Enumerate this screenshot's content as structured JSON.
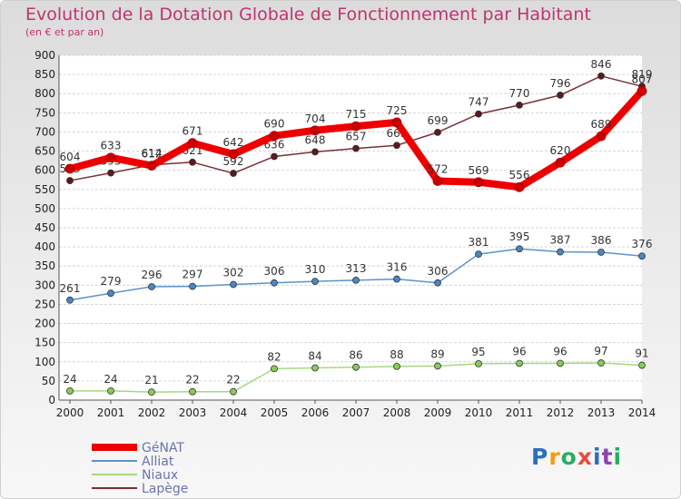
{
  "header": {
    "title": "Evolution de la Dotation Globale de Fonctionnement par Habitant",
    "subtitle": "(en € et par an)"
  },
  "logo": {
    "letters": [
      "P",
      "r",
      "o",
      "x",
      "i",
      "t",
      "i"
    ],
    "colors": [
      "#2a6fbf",
      "#f39c12",
      "#27ae60",
      "#e74c3c",
      "#2a6fbf",
      "#8e44ad",
      "#27ae60"
    ]
  },
  "chart_data": {
    "type": "line",
    "x": [
      "2000",
      "2001",
      "2002",
      "2003",
      "2004",
      "2005",
      "2006",
      "2007",
      "2008",
      "2009",
      "2010",
      "2011",
      "2012",
      "2013",
      "2014"
    ],
    "ylim": [
      0,
      900
    ],
    "yticks": [
      0,
      50,
      100,
      150,
      200,
      250,
      300,
      350,
      400,
      450,
      500,
      550,
      600,
      650,
      700,
      750,
      800,
      850,
      900
    ],
    "grid": "horizontal",
    "legend_position": "bottom-left",
    "series": [
      {
        "name": "Lapège",
        "color": "#7a2e36",
        "marker": "#5a1a20",
        "values": [
          573,
          593,
          614,
          621,
          592,
          636,
          648,
          657,
          665,
          699,
          747,
          770,
          796,
          846,
          819
        ],
        "labels": [
          "573",
          "593",
          "614",
          "621",
          "592",
          "636",
          "648",
          "657",
          "665",
          "699",
          "747",
          "770",
          "796",
          "846",
          "819"
        ]
      },
      {
        "name": "Alliat",
        "color": "#5b93cc",
        "marker": "#4a86c4",
        "values": [
          261,
          279,
          296,
          297,
          302,
          306,
          310,
          313,
          316,
          306,
          381,
          395,
          387,
          386,
          376
        ],
        "labels": [
          "261",
          "279",
          "296",
          "297",
          "302",
          "306",
          "310",
          "313",
          "316",
          "306",
          "381",
          "395",
          "387",
          "386",
          "376"
        ]
      },
      {
        "name": "Niaux",
        "color": "#a6d97b",
        "marker": "#88cc55",
        "values": [
          24,
          24,
          21,
          22,
          22,
          82,
          84,
          86,
          88,
          89,
          95,
          96,
          96,
          97,
          91
        ],
        "labels": [
          "24",
          "24",
          "21",
          "22",
          "22",
          "82",
          "84",
          "86",
          "88",
          "89",
          "95",
          "96",
          "96",
          "97",
          "91"
        ]
      },
      {
        "name": "GéNAT",
        "color": "#ee0000",
        "marker": "#cc0000",
        "values": [
          604,
          633,
          612,
          671,
          642,
          690,
          704,
          715,
          725,
          572,
          569,
          556,
          620,
          689,
          807
        ],
        "labels": [
          "604",
          "633",
          "612",
          "671",
          "642",
          "690",
          "704",
          "715",
          "725",
          "572",
          "569",
          "556",
          "620",
          "689",
          "807"
        ]
      }
    ],
    "legend_order": [
      "GéNAT",
      "Alliat",
      "Niaux",
      "Lapège"
    ]
  }
}
